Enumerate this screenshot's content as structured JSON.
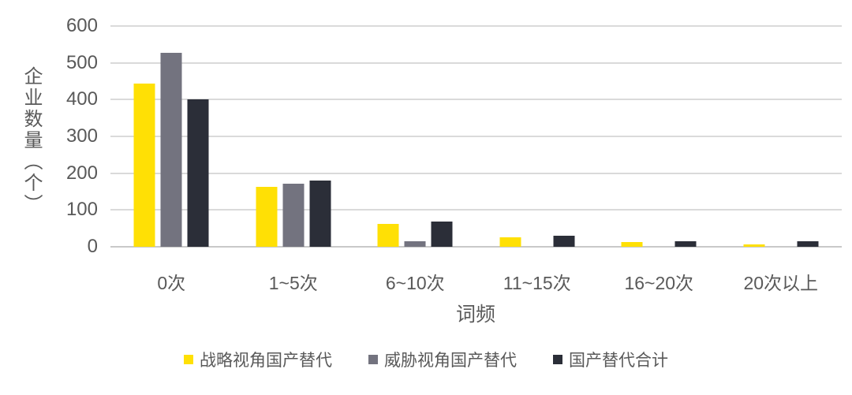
{
  "chart_data": {
    "type": "bar",
    "categories": [
      "0次",
      "1~5次",
      "6~10次",
      "11~15次",
      "16~20次",
      "20次以上"
    ],
    "series": [
      {
        "name": "战略视角国产替代",
        "color": "#ffe005",
        "values": [
          443,
          163,
          63,
          25,
          12,
          7
        ]
      },
      {
        "name": "威胁视角国产替代",
        "color": "#73737f",
        "values": [
          527,
          171,
          15,
          0,
          0,
          0
        ]
      },
      {
        "name": "国产替代合计",
        "color": "#2b2e38",
        "values": [
          400,
          181,
          68,
          31,
          14,
          15
        ]
      }
    ],
    "xlabel": "词频",
    "ylabel": "企业数量（个）",
    "ylim": [
      0,
      600
    ],
    "yticks": [
      0,
      100,
      200,
      300,
      400,
      500,
      600
    ],
    "grid": true,
    "legend_position": "bottom",
    "colors": {
      "grid": "#dadada",
      "axis_text": "#595959",
      "background": "#ffffff"
    }
  }
}
